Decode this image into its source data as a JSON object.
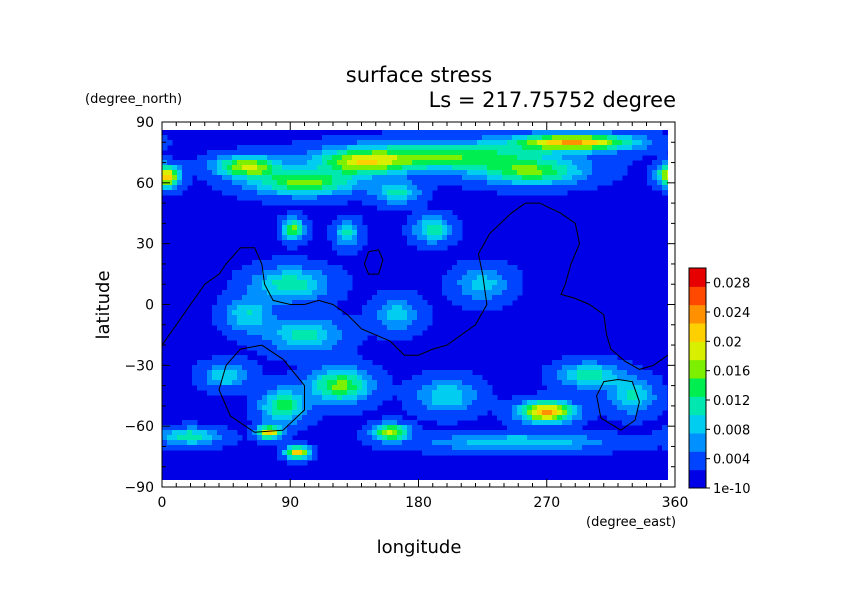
{
  "chart_data": {
    "type": "heatmap",
    "title": "surface stress",
    "subtitle": "Ls = 217.75752 degree",
    "xlabel": "longitude",
    "ylabel": "latitude",
    "x_units": "(degree_east)",
    "y_units": "(degree_north)",
    "xlim": [
      0,
      360
    ],
    "ylim": [
      -90,
      90
    ],
    "x_ticks": [
      "0",
      "90",
      "180",
      "270",
      "360"
    ],
    "y_ticks": [
      "90",
      "60",
      "30",
      "0",
      "−30",
      "−60",
      "−90"
    ],
    "x_tick_values": [
      0,
      90,
      180,
      270,
      360
    ],
    "y_tick_values": [
      90,
      60,
      30,
      0,
      -30,
      -60,
      -90
    ],
    "colorbar": {
      "labels": [
        "0.028",
        "0.024",
        "0.02",
        "0.016",
        "0.012",
        "0.008",
        "0.004",
        "1e-10"
      ],
      "values": [
        0.028,
        0.024,
        0.02,
        0.016,
        0.012,
        0.008,
        0.004,
        0
      ],
      "range": [
        0,
        0.03
      ],
      "colors": [
        "#0000e6",
        "#0044ff",
        "#0090ff",
        "#00cdf0",
        "#00e8b0",
        "#00ee50",
        "#7cf000",
        "#d8f000",
        "#ffd000",
        "#ff9000",
        "#ff4800",
        "#e60000"
      ]
    },
    "background_value": 0.002,
    "grid": false,
    "field_peaks": [
      {
        "lon": 290,
        "lat": 80,
        "value": 0.02,
        "dlon": 40,
        "dlat": 4
      },
      {
        "lon": 200,
        "lat": 73,
        "value": 0.013,
        "dlon": 70,
        "dlat": 7
      },
      {
        "lon": 60,
        "lat": 68,
        "value": 0.016,
        "dlon": 22,
        "dlat": 5
      },
      {
        "lon": 5,
        "lat": 63,
        "value": 0.016,
        "dlon": 8,
        "dlat": 5
      },
      {
        "lon": 355,
        "lat": 64,
        "value": 0.014,
        "dlon": 8,
        "dlat": 5
      },
      {
        "lon": 100,
        "lat": 60,
        "value": 0.014,
        "dlon": 35,
        "dlat": 6
      },
      {
        "lon": 140,
        "lat": 70,
        "value": 0.013,
        "dlon": 30,
        "dlat": 6
      },
      {
        "lon": 260,
        "lat": 65,
        "value": 0.012,
        "dlon": 35,
        "dlat": 6
      },
      {
        "lon": 92,
        "lat": 37,
        "value": 0.014,
        "dlon": 7,
        "dlat": 5
      },
      {
        "lon": 130,
        "lat": 35,
        "value": 0.009,
        "dlon": 8,
        "dlat": 6
      },
      {
        "lon": 190,
        "lat": 37,
        "value": 0.01,
        "dlon": 12,
        "dlat": 6
      },
      {
        "lon": 165,
        "lat": 55,
        "value": 0.009,
        "dlon": 15,
        "dlat": 5
      },
      {
        "lon": 90,
        "lat": 10,
        "value": 0.01,
        "dlon": 25,
        "dlat": 8
      },
      {
        "lon": 100,
        "lat": -15,
        "value": 0.009,
        "dlon": 25,
        "dlat": 8
      },
      {
        "lon": 60,
        "lat": -5,
        "value": 0.008,
        "dlon": 15,
        "dlat": 8
      },
      {
        "lon": 165,
        "lat": -5,
        "value": 0.007,
        "dlon": 15,
        "dlat": 8
      },
      {
        "lon": 225,
        "lat": 10,
        "value": 0.007,
        "dlon": 18,
        "dlat": 8
      },
      {
        "lon": 75,
        "lat": -63,
        "value": 0.02,
        "dlon": 8,
        "dlat": 3
      },
      {
        "lon": 95,
        "lat": -73,
        "value": 0.02,
        "dlon": 8,
        "dlat": 3
      },
      {
        "lon": 85,
        "lat": -50,
        "value": 0.012,
        "dlon": 15,
        "dlat": 8
      },
      {
        "lon": 125,
        "lat": -40,
        "value": 0.014,
        "dlon": 20,
        "dlat": 8
      },
      {
        "lon": 160,
        "lat": -63,
        "value": 0.016,
        "dlon": 12,
        "dlat": 4
      },
      {
        "lon": 200,
        "lat": -45,
        "value": 0.008,
        "dlon": 20,
        "dlat": 8
      },
      {
        "lon": 270,
        "lat": -53,
        "value": 0.022,
        "dlon": 18,
        "dlat": 5
      },
      {
        "lon": 300,
        "lat": -35,
        "value": 0.01,
        "dlon": 20,
        "dlat": 6
      },
      {
        "lon": 330,
        "lat": -45,
        "value": 0.009,
        "dlon": 15,
        "dlat": 8
      },
      {
        "lon": 20,
        "lat": -65,
        "value": 0.01,
        "dlon": 20,
        "dlat": 4
      },
      {
        "lon": 250,
        "lat": -68,
        "value": 0.008,
        "dlon": 60,
        "dlat": 4
      },
      {
        "lon": 45,
        "lat": -35,
        "value": 0.008,
        "dlon": 15,
        "dlat": 6
      }
    ],
    "contours": [
      {
        "name": "equatorial-outline",
        "closed": false,
        "points": [
          [
            0,
            -20
          ],
          [
            10,
            -10
          ],
          [
            20,
            0
          ],
          [
            30,
            10
          ],
          [
            40,
            15
          ],
          [
            45,
            20
          ],
          [
            55,
            28
          ],
          [
            65,
            28
          ],
          [
            70,
            20
          ],
          [
            72,
            10
          ],
          [
            78,
            2
          ],
          [
            90,
            0
          ],
          [
            100,
            0
          ],
          [
            110,
            2
          ],
          [
            120,
            0
          ],
          [
            130,
            -5
          ],
          [
            140,
            -12
          ],
          [
            150,
            -15
          ],
          [
            160,
            -18
          ],
          [
            170,
            -25
          ],
          [
            180,
            -25
          ],
          [
            190,
            -22
          ],
          [
            200,
            -20
          ],
          [
            210,
            -15
          ],
          [
            220,
            -10
          ],
          [
            228,
            0
          ],
          [
            225,
            15
          ],
          [
            222,
            25
          ],
          [
            230,
            35
          ],
          [
            245,
            45
          ],
          [
            255,
            50
          ],
          [
            265,
            50
          ],
          [
            280,
            45
          ],
          [
            290,
            40
          ],
          [
            293,
            30
          ],
          [
            287,
            20
          ],
          [
            283,
            10
          ],
          [
            280,
            5
          ],
          [
            290,
            3
          ],
          [
            300,
            0
          ],
          [
            310,
            -5
          ],
          [
            312,
            -15
          ],
          [
            315,
            -22
          ],
          [
            325,
            -28
          ],
          [
            335,
            -32
          ],
          [
            345,
            -30
          ],
          [
            355,
            -25
          ],
          [
            360,
            -22
          ]
        ]
      },
      {
        "name": "small-island",
        "closed": true,
        "points": [
          [
            142,
            20
          ],
          [
            145,
            26
          ],
          [
            152,
            27
          ],
          [
            155,
            22
          ],
          [
            152,
            15
          ],
          [
            145,
            15
          ]
        ]
      },
      {
        "name": "southwest-basin",
        "closed": true,
        "points": [
          [
            70,
            -20
          ],
          [
            85,
            -27
          ],
          [
            100,
            -40
          ],
          [
            100,
            -52
          ],
          [
            85,
            -62
          ],
          [
            65,
            -63
          ],
          [
            48,
            -55
          ],
          [
            40,
            -42
          ],
          [
            45,
            -30
          ],
          [
            55,
            -22
          ]
        ]
      },
      {
        "name": "southeast-basin",
        "closed": true,
        "points": [
          [
            320,
            -37
          ],
          [
            330,
            -38
          ],
          [
            335,
            -48
          ],
          [
            332,
            -57
          ],
          [
            322,
            -62
          ],
          [
            308,
            -56
          ],
          [
            305,
            -45
          ],
          [
            310,
            -38
          ]
        ]
      }
    ]
  }
}
